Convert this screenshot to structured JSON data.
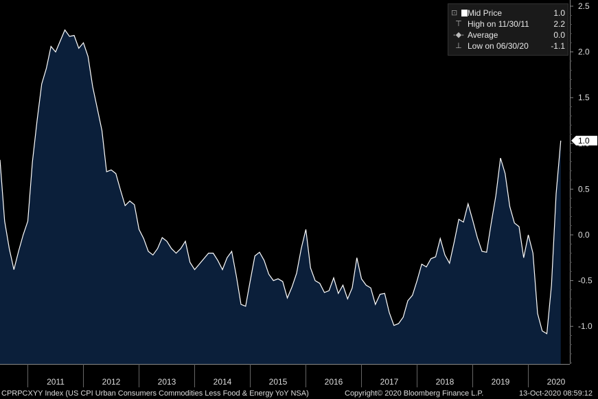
{
  "chart_data": {
    "type": "area",
    "x_start_year": 2010,
    "frequency": "monthly",
    "series": [
      {
        "values": [
          0.82,
          0.15,
          -0.15,
          -0.38,
          -0.18,
          0.0,
          0.15,
          0.8,
          1.25,
          1.65,
          1.82,
          2.06,
          2.0,
          2.12,
          2.24,
          2.17,
          2.18,
          2.04,
          2.1,
          1.95,
          1.62,
          1.38,
          1.14,
          0.69,
          0.71,
          0.67,
          0.49,
          0.32,
          0.37,
          0.33,
          0.06,
          -0.04,
          -0.18,
          -0.22,
          -0.15,
          -0.03,
          -0.07,
          -0.15,
          -0.2,
          -0.15,
          -0.07,
          -0.3,
          -0.38,
          -0.32,
          -0.26,
          -0.2,
          -0.2,
          -0.28,
          -0.38,
          -0.25,
          -0.18,
          -0.45,
          -0.76,
          -0.78,
          -0.5,
          -0.23,
          -0.19,
          -0.28,
          -0.43,
          -0.5,
          -0.48,
          -0.51,
          -0.69,
          -0.57,
          -0.42,
          -0.15,
          0.06,
          -0.36,
          -0.5,
          -0.53,
          -0.63,
          -0.61,
          -0.47,
          -0.64,
          -0.55,
          -0.7,
          -0.58,
          -0.25,
          -0.48,
          -0.55,
          -0.58,
          -0.76,
          -0.65,
          -0.64,
          -0.85,
          -0.99,
          -0.97,
          -0.9,
          -0.72,
          -0.66,
          -0.5,
          -0.32,
          -0.35,
          -0.26,
          -0.24,
          -0.04,
          -0.22,
          -0.31,
          -0.08,
          0.17,
          0.14,
          0.34,
          0.16,
          -0.03,
          -0.18,
          -0.19,
          0.13,
          0.43,
          0.84,
          0.67,
          0.31,
          0.13,
          0.09,
          -0.25,
          0.0,
          -0.2,
          -0.86,
          -1.05,
          -1.08,
          -0.55,
          0.45,
          1.03
        ]
      }
    ],
    "yticks": [
      2.5,
      2.0,
      1.5,
      1.0,
      0.5,
      0.0,
      -0.5,
      -1.0
    ],
    "ylim": [
      -1.4,
      2.55
    ],
    "xticks": [
      "2011",
      "2012",
      "2013",
      "2014",
      "2015",
      "2016",
      "2017",
      "2018",
      "2019",
      "2020"
    ],
    "last_value_label": "1.0",
    "colors": {
      "fill": "#0b1f3a",
      "line": "#ffffff",
      "background": "#000000",
      "axis": "#888888"
    },
    "grid": false,
    "legend_position": "top-right",
    "legend": [
      {
        "glyph": "square",
        "label": "Mid Price",
        "value": "1.0"
      },
      {
        "glyph": "high",
        "label": "High on 11/30/11",
        "value": "2.2"
      },
      {
        "glyph": "average",
        "label": "Average",
        "value": "0.0"
      },
      {
        "glyph": "low",
        "label": "Low on 06/30/20",
        "value": "-1.1"
      }
    ]
  },
  "footer": {
    "ticker": "CPRPCXYY Index (US CPI Urban Consumers Commodities Less Food & Energy YoY NSA)",
    "copyright": "Copyright© 2020 Bloomberg Finance L.P.",
    "timestamp": "13-Oct-2020 08:59:12"
  }
}
